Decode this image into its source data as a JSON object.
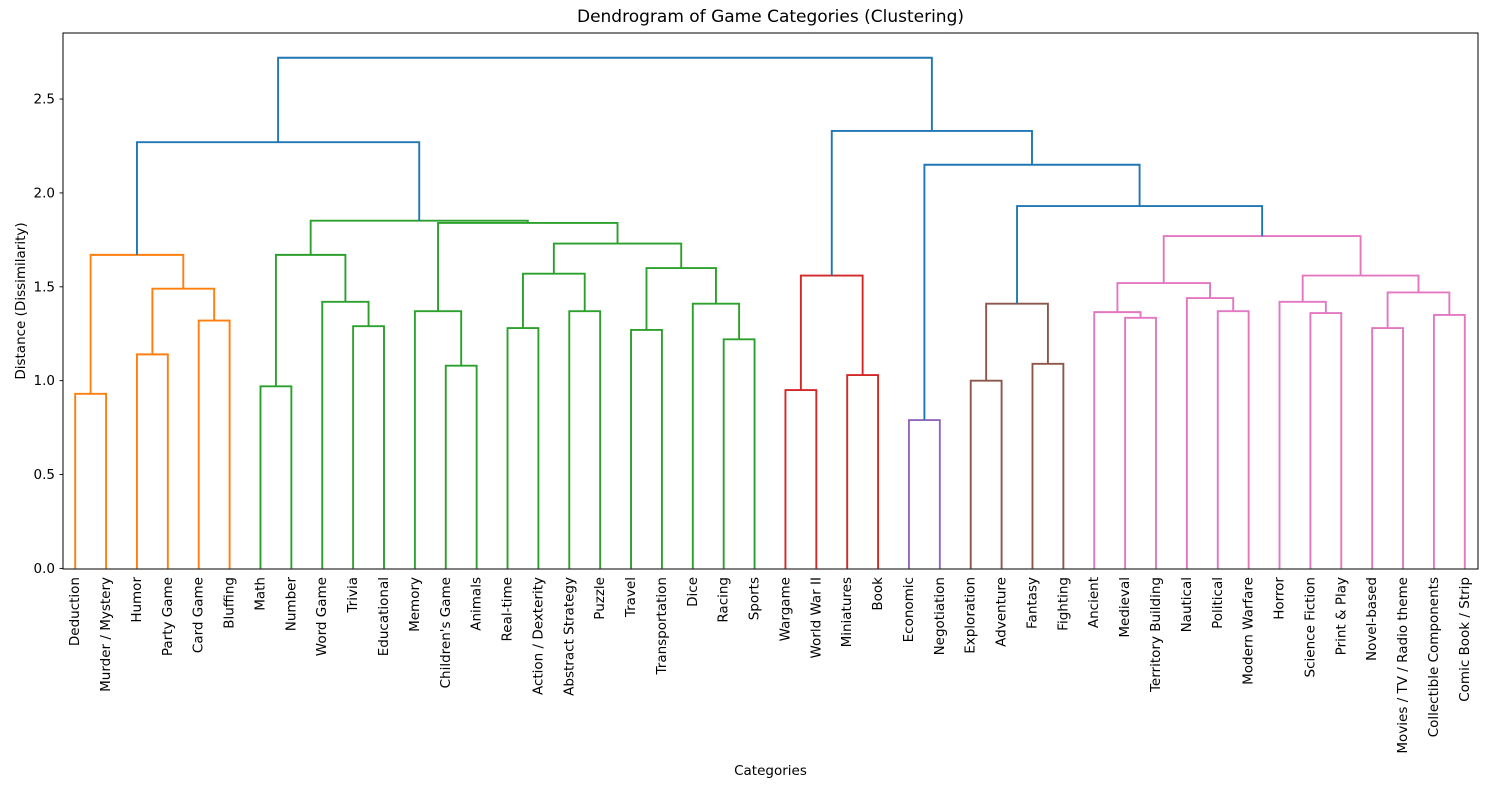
{
  "title": "Dendrogram of Game Categories (Clustering)",
  "xlabel": "Categories",
  "ylabel": "Distance (Dissimilarity)",
  "chart_data": {
    "type": "dendrogram",
    "title": "Dendrogram of Game Categories (Clustering)",
    "xlabel": "Categories",
    "ylabel": "Distance (Dissimilarity)",
    "yticks": [
      "0.0",
      "0.5",
      "1.0",
      "1.5",
      "2.0",
      "2.5"
    ],
    "ylim": [
      0,
      2.85
    ],
    "grid": false,
    "link_colors": {
      "above_threshold_blue": "#1f77b4",
      "cluster1_orange": "#ff7f0e",
      "cluster2_green": "#2ca02c",
      "cluster3_red": "#d62728",
      "cluster4_purple": "#9467bd",
      "cluster5_brown": "#8c564b",
      "cluster6_pink": "#e377c2"
    },
    "leaves": [
      "Deduction",
      "Murder / Mystery",
      "Humor",
      "Party Game",
      "Card Game",
      "Bluffing",
      "Math",
      "Number",
      "Word Game",
      "Trivia",
      "Educational",
      "Memory",
      "Children's Game",
      "Animals",
      "Real-time",
      "Action / Dexterity",
      "Abstract Strategy",
      "Puzzle",
      "Travel",
      "Transportation",
      "Dice",
      "Racing",
      "Sports",
      "Wargame",
      "World War II",
      "Miniatures",
      "Book",
      "Economic",
      "Negotiation",
      "Exploration",
      "Adventure",
      "Fantasy",
      "Fighting",
      "Ancient",
      "Medieval",
      "Territory Building",
      "Nautical",
      "Political",
      "Modern Warfare",
      "Horror",
      "Science Fiction",
      "Print & Play",
      "Novel-based",
      "Movies / TV / Radio theme",
      "Collectible Components",
      "Comic Book / Strip"
    ],
    "merges": [
      {
        "a": "L0",
        "b": "L1",
        "h": 0.93,
        "color": "#ff7f0e"
      },
      {
        "a": "L2",
        "b": "L3",
        "h": 1.14,
        "color": "#ff7f0e"
      },
      {
        "a": "L4",
        "b": "L5",
        "h": 1.32,
        "color": "#ff7f0e"
      },
      {
        "a": "M1",
        "b": "M2",
        "h": 1.49,
        "color": "#ff7f0e"
      },
      {
        "a": "M0",
        "b": "M3",
        "h": 1.67,
        "color": "#ff7f0e"
      },
      {
        "a": "L6",
        "b": "L7",
        "h": 0.97,
        "color": "#2ca02c"
      },
      {
        "a": "L9",
        "b": "L10",
        "h": 1.29,
        "color": "#2ca02c"
      },
      {
        "a": "L8",
        "b": "M6",
        "h": 1.42,
        "color": "#2ca02c"
      },
      {
        "a": "M5",
        "b": "M7",
        "h": 1.67,
        "color": "#2ca02c"
      },
      {
        "a": "L12",
        "b": "L13",
        "h": 1.08,
        "color": "#2ca02c"
      },
      {
        "a": "L11",
        "b": "M9",
        "h": 1.37,
        "color": "#2ca02c"
      },
      {
        "a": "L14",
        "b": "L15",
        "h": 1.28,
        "color": "#2ca02c"
      },
      {
        "a": "L16",
        "b": "L17",
        "h": 1.37,
        "color": "#2ca02c"
      },
      {
        "a": "M11",
        "b": "M12",
        "h": 1.57,
        "color": "#2ca02c"
      },
      {
        "a": "L18",
        "b": "L19",
        "h": 1.27,
        "color": "#2ca02c"
      },
      {
        "a": "L21",
        "b": "L22",
        "h": 1.22,
        "color": "#2ca02c"
      },
      {
        "a": "L20",
        "b": "M15",
        "h": 1.41,
        "color": "#2ca02c"
      },
      {
        "a": "M14",
        "b": "M16",
        "h": 1.6,
        "color": "#2ca02c"
      },
      {
        "a": "M13",
        "b": "M17",
        "h": 1.73,
        "color": "#2ca02c"
      },
      {
        "a": "M10",
        "b": "M18",
        "h": 1.84,
        "color": "#2ca02c"
      },
      {
        "a": "M8",
        "b": "M19",
        "h": 1.852,
        "color": "#2ca02c"
      },
      {
        "a": "L23",
        "b": "L24",
        "h": 0.95,
        "color": "#d62728"
      },
      {
        "a": "L25",
        "b": "L26",
        "h": 1.03,
        "color": "#d62728"
      },
      {
        "a": "M21",
        "b": "M22",
        "h": 1.56,
        "color": "#d62728"
      },
      {
        "a": "L27",
        "b": "L28",
        "h": 0.79,
        "color": "#9467bd"
      },
      {
        "a": "L29",
        "b": "L30",
        "h": 1.0,
        "color": "#8c564b"
      },
      {
        "a": "L31",
        "b": "L32",
        "h": 1.09,
        "color": "#8c564b"
      },
      {
        "a": "M25",
        "b": "M26",
        "h": 1.41,
        "color": "#8c564b"
      },
      {
        "a": "L34",
        "b": "L35",
        "h": 1.335,
        "color": "#e377c2"
      },
      {
        "a": "L33",
        "b": "M28",
        "h": 1.365,
        "color": "#e377c2"
      },
      {
        "a": "L37",
        "b": "L38",
        "h": 1.37,
        "color": "#e377c2"
      },
      {
        "a": "L36",
        "b": "M30",
        "h": 1.44,
        "color": "#e377c2"
      },
      {
        "a": "M29",
        "b": "M31",
        "h": 1.52,
        "color": "#e377c2"
      },
      {
        "a": "L40",
        "b": "L41",
        "h": 1.36,
        "color": "#e377c2"
      },
      {
        "a": "L39",
        "b": "M33",
        "h": 1.42,
        "color": "#e377c2"
      },
      {
        "a": "L42",
        "b": "L43",
        "h": 1.28,
        "color": "#e377c2"
      },
      {
        "a": "L44",
        "b": "L45",
        "h": 1.35,
        "color": "#e377c2"
      },
      {
        "a": "M35",
        "b": "M36",
        "h": 1.47,
        "color": "#e377c2"
      },
      {
        "a": "M34",
        "b": "M37",
        "h": 1.56,
        "color": "#e377c2"
      },
      {
        "a": "M32",
        "b": "M38",
        "h": 1.77,
        "color": "#e377c2"
      },
      {
        "a": "M27",
        "b": "M39",
        "h": 1.93,
        "color": "#1f77b4"
      },
      {
        "a": "M24",
        "b": "M40",
        "h": 2.15,
        "color": "#1f77b4"
      },
      {
        "a": "M23",
        "b": "M41",
        "h": 2.33,
        "color": "#1f77b4"
      },
      {
        "a": "M4",
        "b": "M20",
        "h": 2.27,
        "color": "#1f77b4"
      },
      {
        "a": "M43",
        "b": "M42",
        "h": 2.72,
        "color": "#1f77b4"
      }
    ]
  }
}
